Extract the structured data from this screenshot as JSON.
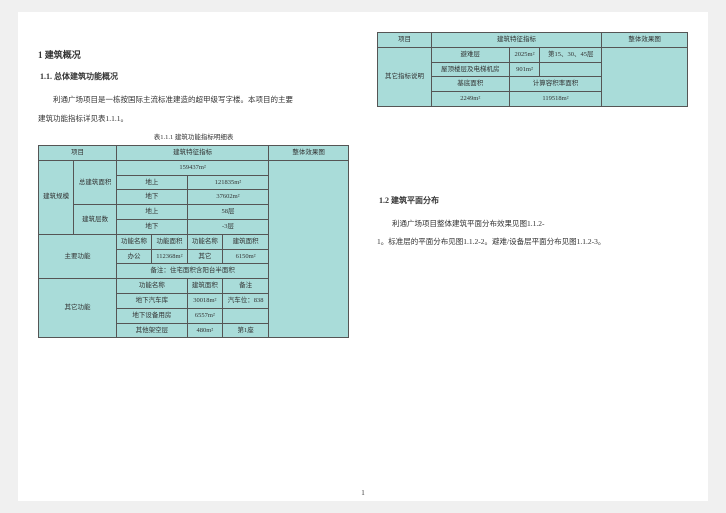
{
  "left": {
    "h2": "1  建筑概况",
    "h3": "1.1.  总体建筑功能概况",
    "para1": "利通广场项目是一栋按国际主流标准建造的超甲级写字楼。本项目的主要",
    "para2line": "建筑功能指标详见表1.1.1。",
    "caption": "表1.1.1  建筑功能指标明细表",
    "table": {
      "head": {
        "c0": "项目",
        "c1": "建筑特征指标",
        "c2": "整体效果图"
      },
      "r0": {
        "a": "建筑规模",
        "b": "总建筑面积"
      },
      "r0v": "159437m²",
      "r1": {
        "a": "地上",
        "v": "121835m²"
      },
      "r2": {
        "a": "地下",
        "v": "37602m²"
      },
      "r3": {
        "lab": "建筑层数"
      },
      "r3a": {
        "a": "地上",
        "v": "58层"
      },
      "r3b": {
        "a": "地下",
        "v": "-3层"
      },
      "r4": {
        "lab": "主要功能"
      },
      "r4h": {
        "a": "功能名称",
        "b": "功能面积",
        "c": "功能名称",
        "d": "建筑面积"
      },
      "r4v": {
        "a": "办公",
        "b": "112368m²",
        "c": "其它",
        "d": "6150m²"
      },
      "r4note": "备注：住宅面积含阳台半面积",
      "r5": {
        "lab": "其它功能"
      },
      "r5h": {
        "a": "功能名称",
        "b": "建筑面积",
        "c": "备注"
      },
      "r5a": {
        "a": "地下汽车库",
        "b": "30018m²",
        "c": "汽车位：838"
      },
      "r5b": {
        "a": "地下设备用房",
        "b": "6557m²",
        "c": ""
      },
      "r5c": {
        "a": "其他架空层",
        "b": "480m²",
        "c": "第1座"
      }
    }
  },
  "right": {
    "table": {
      "head": {
        "c0": "项目",
        "c1": "建筑特征指标",
        "c2": "整体效果图"
      },
      "r0": {
        "lab": "其它指标说明"
      },
      "r0a": {
        "a": "避难层",
        "b": "2025m²",
        "c": "第15、30、45层"
      },
      "r0b": {
        "a": "屋顶楼层及电梯机房",
        "b": "901m²",
        "c": ""
      },
      "r0c": {
        "a": "基底面积",
        "b": "计算容积率面积",
        "span": true
      },
      "r0d": {
        "a": "2249m²",
        "b": "119518m²"
      }
    },
    "h3": "1.2  建筑平面分布",
    "para1": "利通广场项目整体建筑平面分布效果见图1.1.2-",
    "para2": "1。标准层的平面分布见图1.1.2-2。避难/设备层平面分布见图1.1.2-3。"
  },
  "pgnum": "1"
}
